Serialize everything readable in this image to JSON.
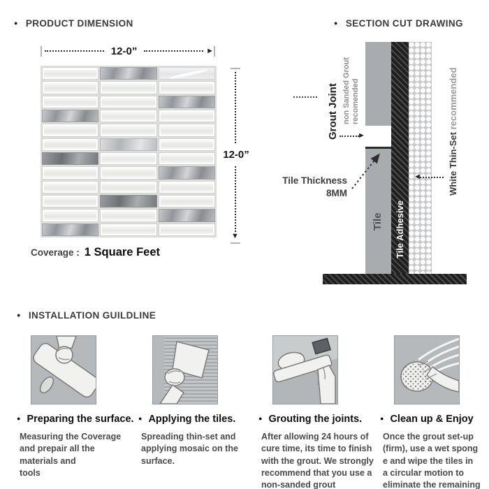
{
  "product_dimension": {
    "title": "PRODUCT DIMENSION",
    "width_label": "12-0”",
    "height_label": "12-0”",
    "coverage_label": "Coverage :",
    "coverage_value": "1 Square Feet",
    "tile_rows": [
      [
        "glass",
        "metal",
        "glass-streak"
      ],
      [
        "glass",
        "glass",
        "glass"
      ],
      [
        "glass",
        "glass",
        "metal"
      ],
      [
        "metal",
        "glass",
        "glass"
      ],
      [
        "glass",
        "glass",
        "glass"
      ],
      [
        "glass",
        "metal-light",
        "glass"
      ],
      [
        "metal-dark",
        "glass",
        "glass"
      ],
      [
        "glass",
        "glass",
        "metal"
      ],
      [
        "glass",
        "glass",
        "glass"
      ],
      [
        "glass",
        "metal-dark",
        "glass"
      ],
      [
        "glass",
        "glass",
        "metal"
      ],
      [
        "metal",
        "glass",
        "glass"
      ]
    ]
  },
  "section_cut": {
    "title": "SECTION CUT DRAWING",
    "grout_joint_label": "Grout Joint",
    "grout_note_line1": "non Sanded Grout",
    "grout_note_line2": "recomended",
    "tile_thickness_label": "Tile Thickness",
    "tile_thickness_value": "8MM",
    "tile_label": "Tile",
    "adhesive_label": "Tile Adhesive",
    "thinset_label": "White Thin-Set ",
    "thinset_note": "recommended"
  },
  "installation": {
    "title": "INSTALLATION GUILDLINE",
    "steps": [
      {
        "heading": "Preparing the surface.",
        "body": "Measuring the Coverage\nand prepair all the\nmaterials and\ntools"
      },
      {
        "heading": "Applying the tiles.",
        "body": "Spreading thin-set and\napplying mosaic on the\nsurface."
      },
      {
        "heading": "Grouting the joints.",
        "body": "After allowing 24 hours of\ncure time, its time to finish\nwith the grout. We strongly\nrecommend that you use a\nnon-sanded grout"
      },
      {
        "heading": "Clean up & Enjoy",
        "body": "Once the grout set-up\n(firm), use a wet spong\ne and wipe the tiles in\na circular motion to\neliminate the remaining\nuneven grout points."
      }
    ]
  },
  "colors": {
    "tile_gray": "#a9acaf",
    "adhesive_dark": "#1f1f1f",
    "thinset_gray": "#c6c8ca",
    "panel_bg": "#b5b9bc",
    "text_dark": "#1d1d1d",
    "text_gray": "#8e8e8e"
  }
}
